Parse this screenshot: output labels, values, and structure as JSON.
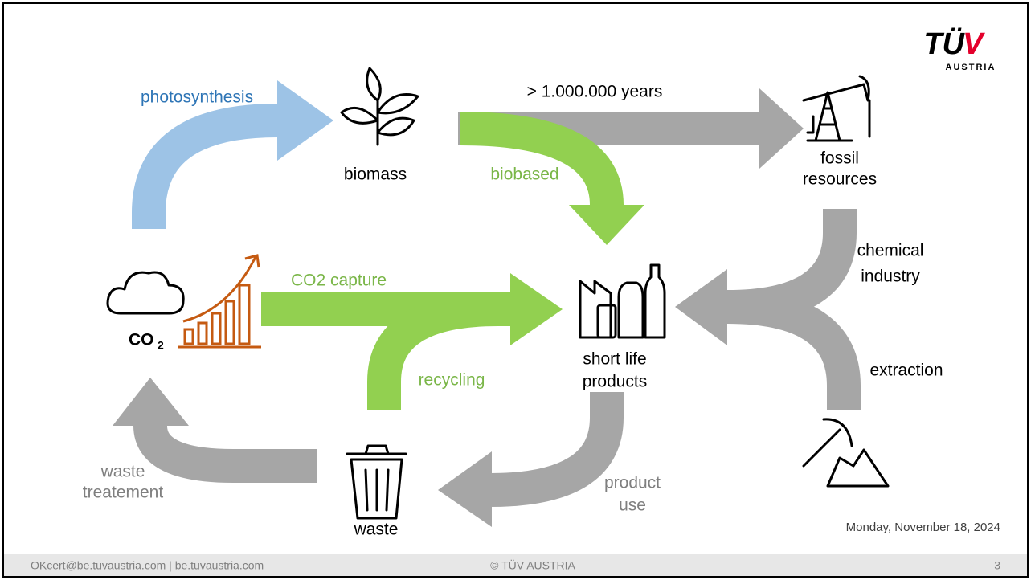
{
  "logo": {
    "brand": [
      "TÜ",
      "V"
    ],
    "country": "AUSTRIA"
  },
  "labels": {
    "photosynthesis": "photosynthesis",
    "biomass": "biomass",
    "duration": "> 1.000.000 years",
    "fossil_resources": [
      "fossil",
      "resources"
    ],
    "biobased": "biobased",
    "chemical_industry": [
      "chemical",
      "industry"
    ],
    "co2_capture": "CO2 capture",
    "co2": [
      "CO",
      "2"
    ],
    "short_life_products": [
      "short life",
      "products"
    ],
    "extraction": "extraction",
    "recycling": "recycling",
    "waste_treatment": [
      "waste",
      "treatement"
    ],
    "waste": "waste",
    "product_use": [
      "product",
      "use"
    ]
  },
  "date": "Monday, November 18, 2024",
  "footer": {
    "contact": "OKcert@be.tuvaustria.com | be.tuvaustria.com",
    "copyright": "© TÜV AUSTRIA",
    "page": "3"
  }
}
